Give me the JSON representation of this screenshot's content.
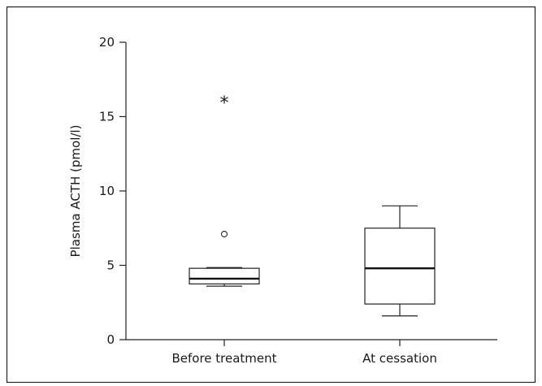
{
  "chart_data": {
    "type": "box",
    "title": "",
    "xlabel": "",
    "ylabel": "Plasma ACTH (pmol/l)",
    "ylim": [
      0,
      20
    ],
    "yticks": [
      0,
      5,
      10,
      15,
      20
    ],
    "ytick_labels": [
      "0",
      "5",
      "10",
      "15",
      "20"
    ],
    "grid": false,
    "categories": [
      "Before treatment",
      "At cessation"
    ],
    "boxes": [
      {
        "category": "Before treatment",
        "whisker_low": 3.6,
        "q1": 3.75,
        "median": 4.1,
        "q3": 4.8,
        "whisker_high": 4.85,
        "outliers": [
          {
            "value": 7.1,
            "marker": "o"
          },
          {
            "value": 16.0,
            "marker": "*"
          }
        ]
      },
      {
        "category": "At cessation",
        "whisker_low": 1.6,
        "q1": 2.4,
        "median": 4.8,
        "q3": 7.5,
        "whisker_high": 9.0,
        "outliers": []
      }
    ],
    "outlier_star_symbol": "*"
  }
}
